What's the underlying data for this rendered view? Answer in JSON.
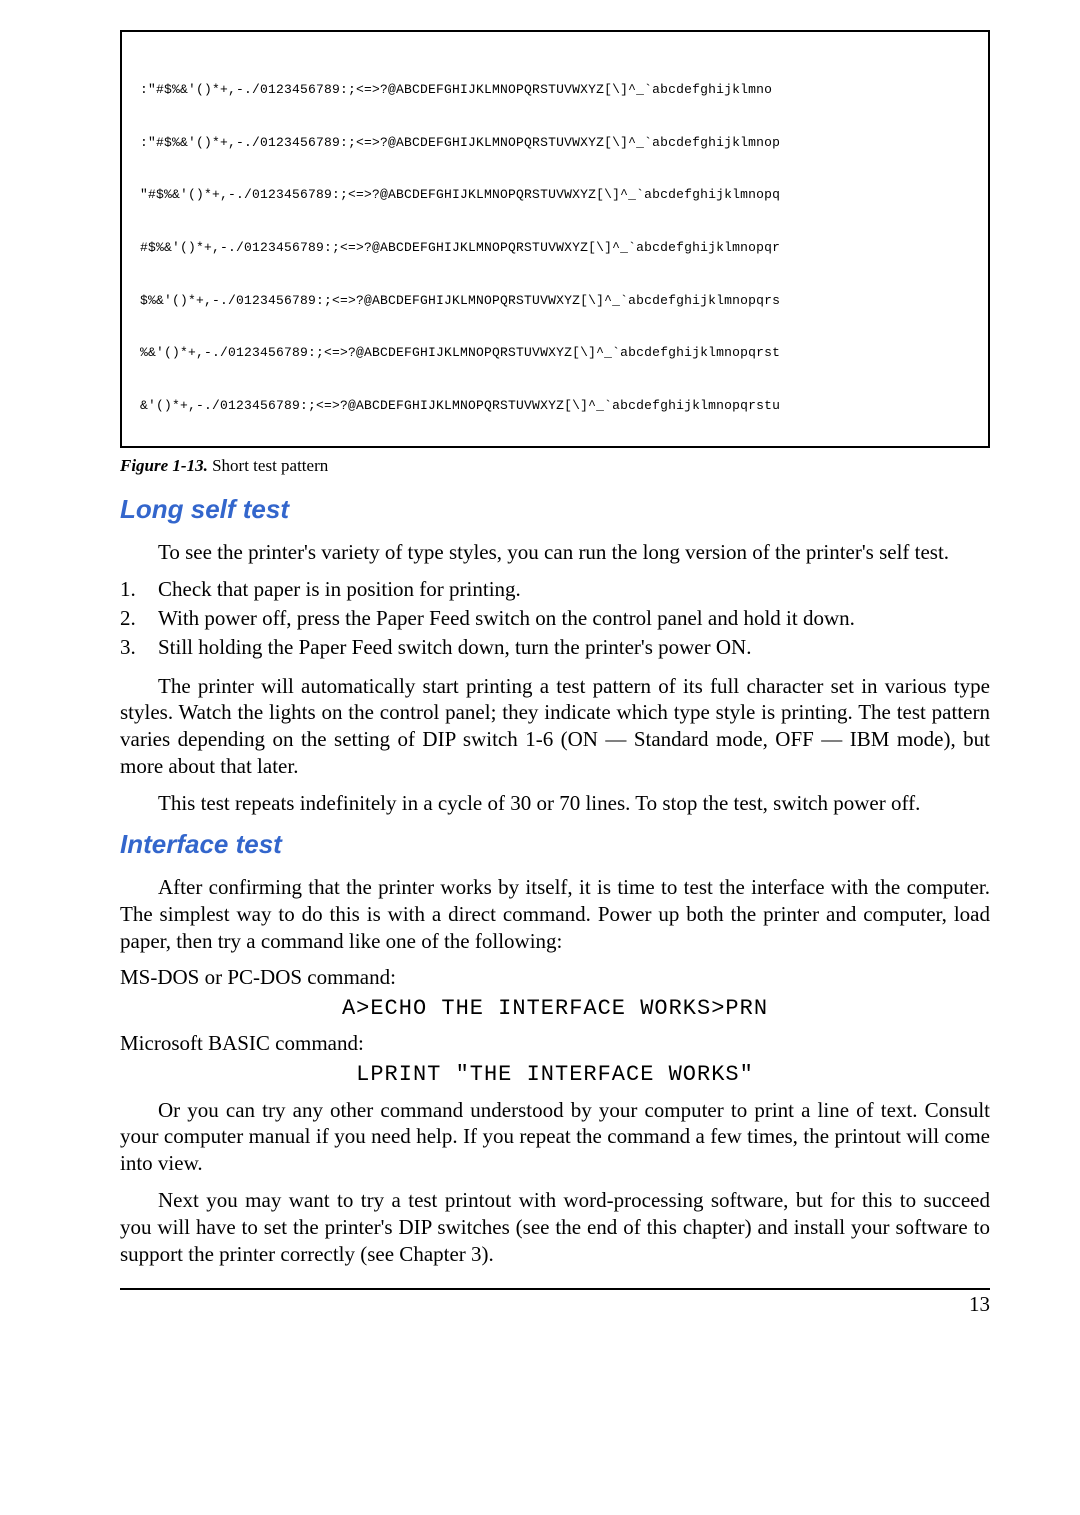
{
  "testPattern": {
    "lines": [
      ":\"#$%&'()*+,-./0123456789:;<=>?@ABCDEFGHIJKLMNOPQRSTUVWXYZ[\\]^_`abcdefghijklmno",
      ":\"#$%&'()*+,-./0123456789:;<=>?@ABCDEFGHIJKLMNOPQRSTUVWXYZ[\\]^_`abcdefghijklmnop",
      "\"#$%&'()*+,-./0123456789:;<=>?@ABCDEFGHIJKLMNOPQRSTUVWXYZ[\\]^_`abcdefghijklmnopq",
      "#$%&'()*+,-./0123456789:;<=>?@ABCDEFGHIJKLMNOPQRSTUVWXYZ[\\]^_`abcdefghijklmnopqr",
      "$%&'()*+,-./0123456789:;<=>?@ABCDEFGHIJKLMNOPQRSTUVWXYZ[\\]^_`abcdefghijklmnopqrs",
      "%&'()*+,-./0123456789:;<=>?@ABCDEFGHIJKLMNOPQRSTUVWXYZ[\\]^_`abcdefghijklmnopqrst",
      "&'()*+,-./0123456789:;<=>?@ABCDEFGHIJKLMNOPQRSTUVWXYZ[\\]^_`abcdefghijklmnopqrstu"
    ]
  },
  "figure": {
    "label": "Figure 1-13.",
    "caption": "Short test pattern"
  },
  "sections": {
    "longSelfTest": {
      "heading": "Long self test",
      "para1": "To see the printer's variety of type styles, you can run the long version of the printer's self test.",
      "steps": [
        "Check that paper is in position for printing.",
        "With power off, press the Paper Feed switch on the control panel and hold it down.",
        "Still holding the Paper Feed switch down, turn the printer's power ON."
      ],
      "para2": "The printer will automatically start printing a test pattern of its full character set in various type styles. Watch the lights on the control panel; they indicate which type style is printing. The test pattern varies depending on the setting of DIP switch 1-6 (ON — Standard mode, OFF — IBM mode), but more about that later.",
      "para3": "This test repeats indefinitely in a cycle of 30 or 70 lines. To stop the test, switch power off."
    },
    "interfaceTest": {
      "heading": "Interface test",
      "para1": "After confirming that the printer works by itself, it is time to test the interface with the computer. The simplest way to do this is with a direct command. Power up both the printer and computer, load paper, then try a command like one of the following:",
      "cmd1Label": "MS-DOS or PC-DOS command:",
      "cmd1": "A>ECHO THE INTERFACE WORKS>PRN",
      "cmd2Label": "Microsoft BASIC command:",
      "cmd2": "LPRINT \"THE INTERFACE WORKS\"",
      "para2": "Or you can try any other command understood by your computer to print a line of text. Consult your computer manual if you need help. If you repeat the command a few times, the printout will come into view.",
      "para3": "Next you may want to try a test printout with word-processing software, but for this to succeed you will have to set the printer's DIP switches (see the end of this chapter) and install your software to support the printer correctly (see Chapter 3)."
    }
  },
  "pageNumber": "13"
}
